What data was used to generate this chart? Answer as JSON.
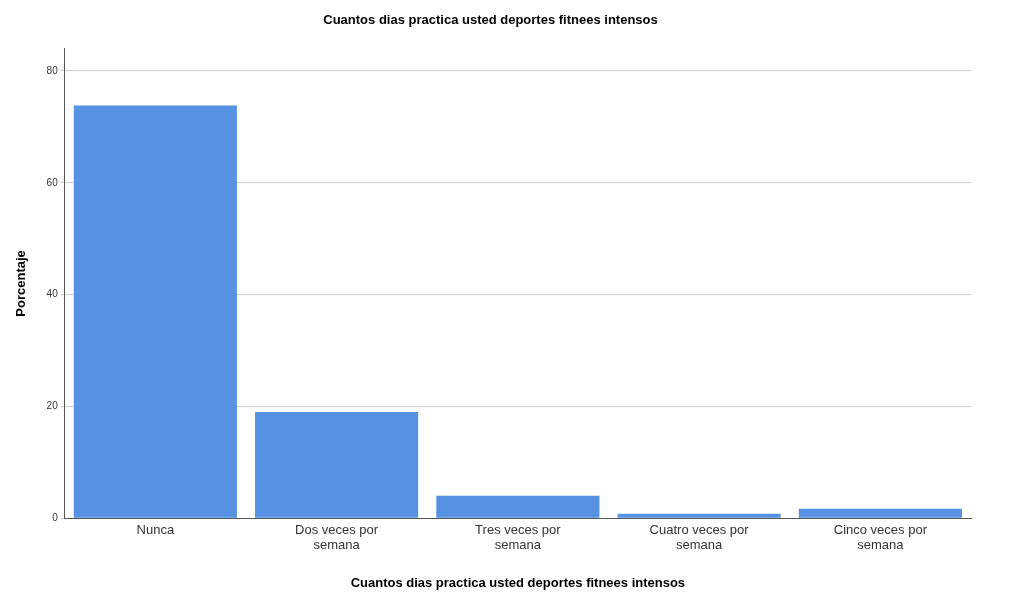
{
  "chart_data": {
    "type": "bar",
    "title": "Cuantos dias practica usted deportes fitnees intensos",
    "xlabel": "Cuantos dias practica usted deportes fitnees intensos",
    "ylabel": "Porcentaje",
    "categories": [
      [
        "Nunca"
      ],
      [
        "Dos veces por",
        "semana"
      ],
      [
        "Tres veces por",
        "semana"
      ],
      [
        "Cuatro veces por",
        "semana"
      ],
      [
        "Cinco veces por",
        "semana"
      ]
    ],
    "values": [
      73.8,
      19.0,
      4.0,
      0.8,
      1.7
    ],
    "color": "#5592e2",
    "ylim": [
      0,
      84
    ],
    "yticks": [
      0,
      20,
      40,
      60,
      80
    ],
    "grid": "y",
    "legend": false
  }
}
